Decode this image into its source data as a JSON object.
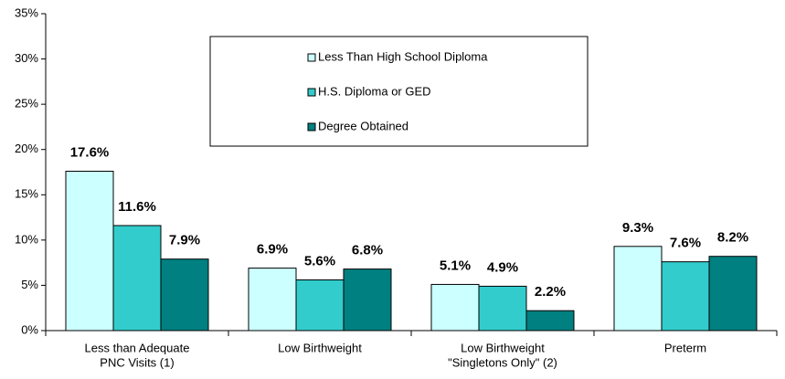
{
  "chart_data": {
    "type": "bar",
    "categories": [
      [
        "Less than Adequate",
        "PNC Visits (1)"
      ],
      [
        "Low Birthweight"
      ],
      [
        "Low Birthweight",
        "\"Singletons Only\" (2)"
      ],
      [
        "Preterm"
      ]
    ],
    "series": [
      {
        "name": "Less Than High School Diploma",
        "color": "#ccffff",
        "values": [
          17.6,
          6.9,
          5.1,
          9.3
        ],
        "value_labels": [
          "17.6%",
          "6.9%",
          "5.1%",
          "9.3%"
        ]
      },
      {
        "name": "H.S. Diploma or GED",
        "color": "#33cccc",
        "values": [
          11.6,
          5.6,
          4.9,
          7.6
        ],
        "value_labels": [
          "11.6%",
          "5.6%",
          "4.9%",
          "7.6%"
        ]
      },
      {
        "name": "Degree Obtained",
        "color": "#008080",
        "values": [
          7.9,
          6.8,
          2.2,
          8.2
        ],
        "value_labels": [
          "7.9%",
          "6.8%",
          "2.2%",
          "8.2%"
        ]
      }
    ],
    "ylim": [
      0,
      35
    ],
    "yticks": [
      {
        "value": 0,
        "label": "0%"
      },
      {
        "value": 5,
        "label": "5%"
      },
      {
        "value": 10,
        "label": "10%"
      },
      {
        "value": 15,
        "label": "15%"
      },
      {
        "value": 20,
        "label": "20%"
      },
      {
        "value": 25,
        "label": "25%"
      },
      {
        "value": 30,
        "label": "30%"
      },
      {
        "value": 35,
        "label": "35%"
      }
    ],
    "grid": false
  }
}
